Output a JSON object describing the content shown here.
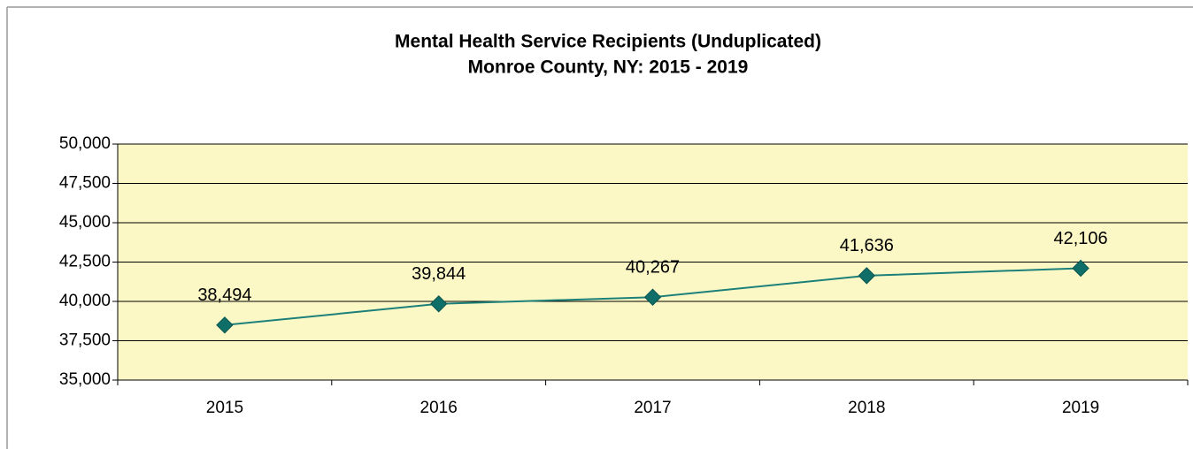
{
  "chart_data": {
    "type": "line",
    "title": "Mental Health Service Recipients (Unduplicated)",
    "subtitle": "Monroe County, NY: 2015 - 2019",
    "categories": [
      "2015",
      "2016",
      "2017",
      "2018",
      "2019"
    ],
    "series": [
      {
        "name": "Mental Health Service Recipients",
        "color": "#1c8079",
        "values": [
          38494,
          39844,
          40267,
          41636,
          42106
        ],
        "value_labels": [
          "38,494",
          "39,844",
          "40,267",
          "41,636",
          "42,106"
        ]
      }
    ],
    "ylim": [
      35000,
      50000
    ],
    "yticks": [
      {
        "value": 35000,
        "label": "35,000"
      },
      {
        "value": 37500,
        "label": "37,500"
      },
      {
        "value": 40000,
        "label": "40,000"
      },
      {
        "value": 42500,
        "label": "42,500"
      },
      {
        "value": 45000,
        "label": "45,000"
      },
      {
        "value": 47500,
        "label": "47,500"
      },
      {
        "value": 50000,
        "label": "50,000"
      }
    ],
    "grid": true,
    "plot_background": "#fbf8c6"
  }
}
